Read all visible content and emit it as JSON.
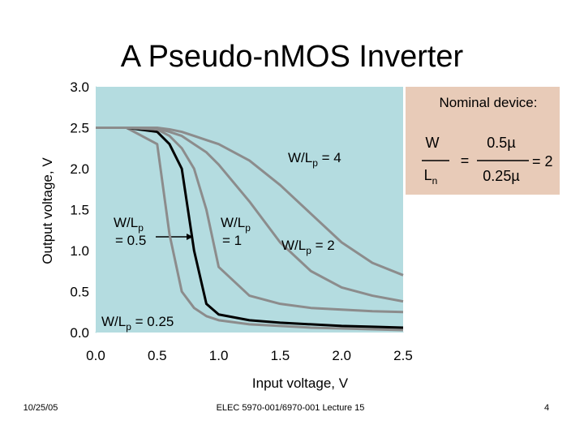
{
  "title": "A Pseudo-nMOS Inverter",
  "chart_data": {
    "type": "line",
    "x_label": "Input voltage, V",
    "y_label": "Output voltage, V",
    "x": [
      0,
      0.25,
      0.5,
      0.6,
      0.7,
      0.8,
      0.9,
      1.0,
      1.25,
      1.5,
      1.75,
      2.0,
      2.25,
      2.5
    ],
    "series": [
      {
        "color": "#8c8c8c",
        "values": [
          2.5,
          2.5,
          2.3,
          1.2,
          0.5,
          0.3,
          0.2,
          0.15,
          0.1,
          0.08,
          0.06,
          0.05,
          0.04,
          0.03
        ]
      },
      {
        "color": "#000000",
        "values": [
          2.5,
          2.5,
          2.45,
          2.3,
          2.0,
          1.0,
          0.35,
          0.22,
          0.15,
          0.12,
          0.1,
          0.08,
          0.07,
          0.06
        ]
      },
      {
        "color": "#8c8c8c",
        "values": [
          2.5,
          2.5,
          2.48,
          2.4,
          2.25,
          2.0,
          1.5,
          0.8,
          0.45,
          0.35,
          0.3,
          0.28,
          0.26,
          0.25
        ]
      },
      {
        "color": "#8c8c8c",
        "values": [
          2.5,
          2.5,
          2.49,
          2.45,
          2.4,
          2.3,
          2.2,
          2.05,
          1.6,
          1.1,
          0.75,
          0.55,
          0.45,
          0.38
        ]
      },
      {
        "color": "#8c8c8c",
        "values": [
          2.5,
          2.5,
          2.5,
          2.48,
          2.45,
          2.4,
          2.35,
          2.3,
          2.1,
          1.8,
          1.45,
          1.1,
          0.85,
          0.7
        ]
      }
    ],
    "xlim": [
      0,
      2.5
    ],
    "ylim": [
      0,
      3
    ],
    "xticks": [
      {
        "value": 0,
        "label": "0.0"
      },
      0.5,
      {
        "value": 1,
        "label": "1.0"
      },
      1.5,
      {
        "value": 2,
        "label": "2.0"
      },
      2.5
    ],
    "yticks": [
      {
        "value": 0,
        "label": "0.0"
      },
      0.5,
      {
        "value": 1,
        "label": "1.0"
      },
      1.5,
      {
        "value": 2,
        "label": "2.0"
      },
      2.5,
      {
        "value": 3,
        "label": "3.0"
      }
    ],
    "annotations": [
      {
        "lines": [
          [
            "W/L",
            "p",
            " = 4"
          ]
        ]
      },
      {
        "lines": [
          [
            "W/L",
            "p"
          ],
          [
            "= 0.5"
          ]
        ]
      },
      {
        "lines": [
          [
            "W/L",
            "p"
          ],
          [
            "= 1"
          ]
        ]
      },
      {
        "lines": [
          [
            "W/L",
            "p",
            " = 2"
          ]
        ]
      },
      {
        "lines": [
          [
            "W/L",
            "p",
            " = 0.25"
          ]
        ]
      }
    ],
    "nominal": {
      "title": "Nominal device:",
      "top": "W",
      "bottom": "L",
      "bottom_sub": "n",
      "eq": "=",
      "num": "0.5µ",
      "den": "0.25µ",
      "result": "= 2"
    }
  },
  "footer": {
    "date": "10/25/05",
    "course": "ELEC 5970-001/6970-001 Lecture 15",
    "page": "4"
  }
}
